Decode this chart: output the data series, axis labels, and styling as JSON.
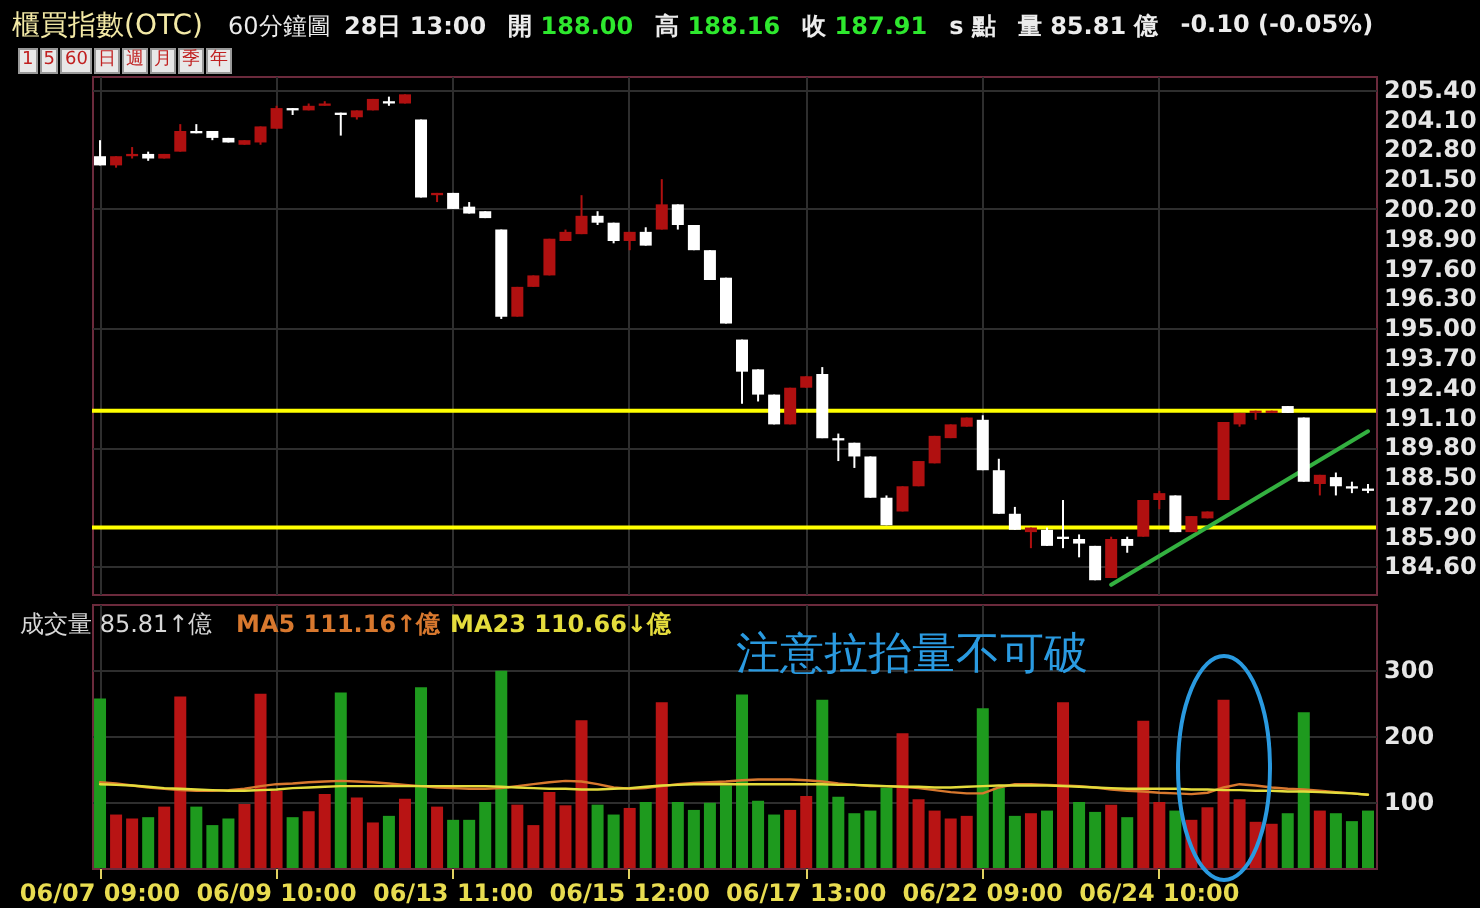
{
  "chart_data": [
    {
      "type": "candlestick",
      "title": "櫃買指數(OTC)",
      "subtitle": "60分鐘圖",
      "annotations": [
        "28日 13:00",
        "開 188.00",
        "高 188.16",
        "收 187.91",
        "s 點",
        "量 85.81 億",
        "-0.10 (-0.05%)",
        "1 5 60 日 週 月 季 年"
      ],
      "categories": [
        null,
        null,
        null,
        null,
        null,
        null,
        null,
        null,
        null,
        null,
        null,
        null,
        null,
        null,
        null,
        null,
        null,
        null,
        null,
        null,
        null,
        null,
        null,
        null,
        null,
        null,
        null,
        null,
        null,
        null,
        null,
        null,
        null,
        null,
        null,
        null,
        null,
        null,
        null,
        null,
        null,
        null,
        null,
        null,
        null,
        null,
        null,
        null,
        null,
        null,
        null,
        null,
        null,
        null,
        null,
        null,
        null,
        null,
        null,
        null,
        null,
        null,
        null,
        null,
        null,
        null,
        null,
        null,
        null,
        null,
        null,
        null,
        null,
        null,
        null,
        null,
        null,
        null,
        null,
        null
      ],
      "ohlc": [
        [
          202.5,
          203.2,
          202.1,
          202.1
        ],
        [
          202.1,
          202.5,
          202.0,
          202.5
        ],
        [
          202.5,
          202.9,
          202.4,
          202.6
        ],
        [
          202.6,
          202.7,
          202.3,
          202.4
        ],
        [
          202.4,
          202.6,
          202.4,
          202.6
        ],
        [
          202.7,
          203.9,
          202.7,
          203.6
        ],
        [
          203.6,
          203.9,
          203.5,
          203.5
        ],
        [
          203.6,
          203.6,
          203.2,
          203.3
        ],
        [
          203.3,
          203.3,
          203.1,
          203.1
        ],
        [
          203.0,
          203.2,
          203.0,
          203.2
        ],
        [
          203.1,
          203.8,
          203.0,
          203.8
        ],
        [
          203.7,
          204.7,
          203.7,
          204.6
        ],
        [
          204.6,
          204.6,
          204.3,
          204.5
        ],
        [
          204.5,
          204.8,
          204.5,
          204.7
        ],
        [
          204.7,
          204.9,
          204.7,
          204.8
        ],
        [
          204.4,
          204.4,
          203.4,
          204.3
        ],
        [
          204.2,
          204.5,
          204.1,
          204.5
        ],
        [
          204.5,
          205.0,
          204.5,
          205.0
        ],
        [
          204.9,
          205.1,
          204.7,
          204.8
        ],
        [
          204.8,
          205.2,
          204.8,
          205.2
        ],
        [
          204.1,
          204.1,
          200.7,
          200.7
        ],
        [
          200.8,
          200.9,
          200.5,
          200.9
        ],
        [
          200.9,
          200.9,
          200.2,
          200.2
        ],
        [
          200.3,
          200.5,
          200.0,
          200.0
        ],
        [
          200.1,
          200.1,
          199.8,
          199.8
        ],
        [
          199.3,
          199.3,
          195.4,
          195.5
        ],
        [
          195.5,
          196.8,
          195.5,
          196.8
        ],
        [
          196.8,
          197.3,
          196.8,
          197.3
        ],
        [
          197.3,
          198.9,
          197.3,
          198.9
        ],
        [
          198.8,
          199.3,
          198.8,
          199.2
        ],
        [
          199.1,
          200.8,
          199.1,
          199.9
        ],
        [
          199.9,
          200.1,
          199.5,
          199.6
        ],
        [
          199.6,
          199.6,
          198.7,
          198.8
        ],
        [
          198.8,
          199.2,
          198.4,
          199.2
        ],
        [
          199.2,
          199.4,
          198.6,
          198.6
        ],
        [
          199.3,
          201.5,
          199.3,
          200.4
        ],
        [
          200.4,
          200.4,
          199.3,
          199.5
        ],
        [
          199.5,
          199.5,
          198.4,
          198.4
        ],
        [
          198.4,
          198.4,
          197.1,
          197.1
        ],
        [
          197.2,
          197.2,
          195.2,
          195.2
        ],
        [
          194.5,
          194.5,
          191.7,
          193.1
        ],
        [
          193.2,
          193.2,
          191.8,
          192.1
        ],
        [
          192.1,
          192.1,
          190.8,
          190.8
        ],
        [
          190.8,
          192.4,
          190.8,
          192.4
        ],
        [
          192.4,
          192.9,
          192.4,
          192.9
        ],
        [
          193.0,
          193.3,
          190.2,
          190.2
        ],
        [
          190.2,
          190.4,
          189.2,
          190.1
        ],
        [
          190.0,
          190.0,
          188.9,
          189.4
        ],
        [
          189.4,
          189.4,
          187.6,
          187.6
        ],
        [
          187.6,
          187.7,
          186.4,
          186.4
        ],
        [
          187.0,
          188.1,
          187.0,
          188.1
        ],
        [
          188.1,
          189.2,
          188.1,
          189.2
        ],
        [
          189.1,
          190.3,
          189.1,
          190.3
        ],
        [
          190.2,
          190.8,
          190.2,
          190.8
        ],
        [
          190.7,
          191.1,
          190.7,
          191.1
        ],
        [
          191.0,
          191.2,
          188.8,
          188.8
        ],
        [
          188.8,
          189.3,
          186.9,
          186.9
        ],
        [
          186.9,
          187.2,
          186.2,
          186.2
        ],
        [
          186.1,
          186.3,
          185.4,
          186.3
        ],
        [
          186.2,
          186.3,
          185.5,
          185.5
        ],
        [
          185.9,
          187.5,
          185.4,
          185.8
        ],
        [
          185.8,
          186.0,
          185.0,
          185.6
        ],
        [
          185.5,
          185.5,
          184.0,
          184.0
        ],
        [
          184.1,
          185.9,
          184.1,
          185.8
        ],
        [
          185.8,
          185.9,
          185.2,
          185.5
        ],
        [
          185.9,
          187.5,
          185.9,
          187.5
        ],
        [
          187.5,
          187.9,
          187.1,
          187.8
        ],
        [
          187.7,
          187.7,
          186.1,
          186.1
        ],
        [
          186.1,
          186.8,
          186.1,
          186.8
        ],
        [
          186.7,
          187.0,
          186.7,
          187.0
        ],
        [
          187.5,
          190.9,
          187.5,
          190.9
        ],
        [
          190.8,
          191.3,
          190.7,
          191.3
        ],
        [
          191.3,
          191.4,
          191.0,
          191.4
        ],
        [
          191.3,
          191.4,
          191.3,
          191.4
        ],
        [
          191.6,
          191.6,
          191.3,
          191.3
        ],
        [
          191.1,
          191.1,
          188.3,
          188.3
        ],
        [
          188.2,
          188.6,
          187.7,
          188.6
        ],
        [
          188.5,
          188.7,
          187.7,
          188.1
        ],
        [
          188.1,
          188.3,
          187.8,
          188.0
        ],
        [
          188.0,
          188.2,
          187.8,
          187.9
        ]
      ],
      "colors": [
        "#ffffff",
        "#b01010",
        "#b01010",
        "#ffffff",
        "#b01010",
        "#b01010",
        "#ffffff",
        "#ffffff",
        "#ffffff",
        "#b01010",
        "#b01010",
        "#b01010",
        "#ffffff",
        "#b01010",
        "#b01010",
        "#ffffff",
        "#b01010",
        "#b01010",
        "#ffffff",
        "#b01010",
        "#ffffff",
        "#b01010",
        "#ffffff",
        "#ffffff",
        "#ffffff",
        "#ffffff",
        "#b01010",
        "#b01010",
        "#b01010",
        "#b01010",
        "#b01010",
        "#ffffff",
        "#ffffff",
        "#b01010",
        "#ffffff",
        "#b01010",
        "#ffffff",
        "#ffffff",
        "#ffffff",
        "#ffffff",
        "#ffffff",
        "#ffffff",
        "#ffffff",
        "#b01010",
        "#b01010",
        "#ffffff",
        "#ffffff",
        "#ffffff",
        "#ffffff",
        "#ffffff",
        "#b01010",
        "#b01010",
        "#b01010",
        "#b01010",
        "#b01010",
        "#ffffff",
        "#ffffff",
        "#ffffff",
        "#b01010",
        "#ffffff",
        "#ffffff",
        "#ffffff",
        "#ffffff",
        "#b01010",
        "#ffffff",
        "#b01010",
        "#b01010",
        "#ffffff",
        "#b01010",
        "#b01010",
        "#b01010",
        "#b01010",
        "#b01010",
        "#b01010",
        "#ffffff",
        "#ffffff",
        "#b01010",
        "#ffffff",
        "#ffffff",
        "#ffffff"
      ],
      "ylim": [
        183.4,
        206.0
      ],
      "yticks": [
        {
          "value": 205.4,
          "label": "205.40"
        },
        {
          "value": 204.1,
          "label": "204.10"
        },
        {
          "value": 202.8,
          "label": "202.80"
        },
        {
          "value": 201.5,
          "label": "201.50"
        },
        {
          "value": 200.2,
          "label": "200.20"
        },
        {
          "value": 198.9,
          "label": "198.90"
        },
        {
          "value": 197.6,
          "label": "197.60"
        },
        {
          "value": 196.3,
          "label": "196.30"
        },
        {
          "value": 195.0,
          "label": "195.00"
        },
        {
          "value": 193.7,
          "label": "193.70"
        },
        {
          "value": 192.4,
          "label": "192.40"
        },
        {
          "value": 191.1,
          "label": "191.10"
        },
        {
          "value": 189.8,
          "label": "189.80"
        },
        {
          "value": 188.5,
          "label": "188.50"
        },
        {
          "value": 187.2,
          "label": "187.20"
        },
        {
          "value": 185.9,
          "label": "185.90"
        },
        {
          "value": 184.6,
          "label": "184.60"
        }
      ],
      "grid": true,
      "tick_labels": "y",
      "ref_lines": [
        {
          "axis": "y",
          "value": 191.4,
          "color": "#ffff00"
        },
        {
          "axis": "y",
          "value": 186.3,
          "color": "#ffff00"
        }
      ],
      "series": [
        {
          "type": "line",
          "color": "#33b040",
          "values": [
            null,
            null,
            null,
            null,
            null,
            null,
            null,
            null,
            null,
            null,
            null,
            null,
            null,
            null,
            null,
            null,
            null,
            null,
            null,
            null,
            null,
            null,
            null,
            null,
            null,
            null,
            null,
            null,
            null,
            null,
            null,
            null,
            null,
            null,
            null,
            null,
            null,
            null,
            null,
            null,
            null,
            null,
            null,
            null,
            null,
            null,
            null,
            null,
            null,
            null,
            null,
            null,
            null,
            null,
            null,
            null,
            null,
            null,
            null,
            null,
            null,
            null,
            null,
            183.8,
            null,
            null,
            null,
            null,
            null,
            null,
            null,
            null,
            null,
            null,
            null,
            null,
            null,
            null,
            null,
            190.5
          ]
        }
      ]
    },
    {
      "type": "bar",
      "annotations": [
        "成交量 85.81↑億",
        "注意拉抬量不可破"
      ],
      "categories": [
        "06/07 09:00",
        null,
        null,
        null,
        null,
        null,
        null,
        null,
        null,
        null,
        null,
        "06/09 10:00",
        null,
        null,
        null,
        null,
        null,
        null,
        null,
        null,
        null,
        null,
        "06/13 11:00",
        null,
        null,
        null,
        null,
        null,
        null,
        null,
        null,
        null,
        null,
        "06/15 12:00",
        null,
        null,
        null,
        null,
        null,
        null,
        null,
        null,
        null,
        null,
        "06/17 13:00",
        null,
        null,
        null,
        null,
        null,
        null,
        null,
        null,
        null,
        null,
        "06/22 09:00",
        null,
        null,
        null,
        null,
        null,
        null,
        null,
        null,
        null,
        null,
        "06/24 10:00",
        null,
        null,
        null,
        null,
        null,
        null,
        null,
        null,
        null,
        null,
        null,
        null,
        null
      ],
      "series": [
        {
          "type": "bar",
          "values": [
            257,
            81,
            75,
            77,
            93,
            260,
            93,
            65,
            75,
            97,
            264,
            117,
            77,
            86,
            112,
            266,
            107,
            69,
            79,
            105,
            274,
            93,
            73,
            73,
            100,
            299,
            96,
            65,
            115,
            95,
            224,
            96,
            81,
            91,
            100,
            251,
            100,
            88,
            99,
            125,
            263,
            102,
            81,
            88,
            109,
            255,
            108,
            83,
            87,
            122,
            204,
            104,
            87,
            75,
            79,
            242,
            122,
            79,
            83,
            87,
            251,
            100,
            85,
            96,
            77,
            223,
            100,
            87,
            73,
            92,
            255,
            104,
            70,
            67,
            83,
            236,
            87,
            83,
            71,
            87
          ],
          "colors": [
            "#1e9a1e",
            "#b81414",
            "#b81414",
            "#1e9a1e",
            "#b81414",
            "#b81414",
            "#1e9a1e",
            "#1e9a1e",
            "#1e9a1e",
            "#b81414",
            "#b81414",
            "#b81414",
            "#1e9a1e",
            "#b81414",
            "#b81414",
            "#1e9a1e",
            "#b81414",
            "#b81414",
            "#1e9a1e",
            "#b81414",
            "#1e9a1e",
            "#b81414",
            "#1e9a1e",
            "#1e9a1e",
            "#1e9a1e",
            "#1e9a1e",
            "#b81414",
            "#b81414",
            "#b81414",
            "#b81414",
            "#b81414",
            "#1e9a1e",
            "#1e9a1e",
            "#b81414",
            "#1e9a1e",
            "#b81414",
            "#1e9a1e",
            "#1e9a1e",
            "#1e9a1e",
            "#1e9a1e",
            "#1e9a1e",
            "#1e9a1e",
            "#1e9a1e",
            "#b81414",
            "#b81414",
            "#1e9a1e",
            "#1e9a1e",
            "#1e9a1e",
            "#1e9a1e",
            "#1e9a1e",
            "#b81414",
            "#b81414",
            "#b81414",
            "#b81414",
            "#b81414",
            "#1e9a1e",
            "#1e9a1e",
            "#1e9a1e",
            "#b81414",
            "#1e9a1e",
            "#b81414",
            "#1e9a1e",
            "#1e9a1e",
            "#b81414",
            "#1e9a1e",
            "#b81414",
            "#b81414",
            "#1e9a1e",
            "#b81414",
            "#b81414",
            "#b81414",
            "#b81414",
            "#b81414",
            "#b81414",
            "#1e9a1e",
            "#1e9a1e",
            "#b81414",
            "#1e9a1e",
            "#1e9a1e",
            "#1e9a1e"
          ]
        },
        {
          "type": "line",
          "name": "MA5 111.16↑億",
          "color": "#d8782e",
          "values": [
            130,
            128,
            125,
            122,
            120,
            118,
            117,
            117,
            118,
            120,
            124,
            127,
            128,
            130,
            131,
            132,
            131,
            130,
            128,
            126,
            124,
            122,
            121,
            120,
            120,
            121,
            124,
            127,
            130,
            132,
            131,
            127,
            122,
            120,
            121,
            124,
            127,
            129,
            130,
            131,
            133,
            134,
            134,
            134,
            133,
            131,
            128,
            126,
            124,
            124,
            123,
            121,
            118,
            115,
            113,
            113,
            122,
            127,
            127,
            126,
            125,
            124,
            122,
            119,
            117,
            116,
            114,
            113,
            112,
            114,
            122,
            127,
            125,
            122,
            120,
            119,
            117,
            115,
            113,
            111
          ]
        },
        {
          "type": "line",
          "name": "MA23 110.66↓億",
          "color": "#e4dc3c",
          "values": [
            127,
            126,
            125,
            123,
            121,
            120,
            119,
            118,
            117,
            117,
            118,
            119,
            121,
            122,
            123,
            124,
            124,
            124,
            124,
            124,
            124,
            124,
            124,
            124,
            124,
            123,
            122,
            121,
            120,
            120,
            119,
            119,
            120,
            121,
            123,
            125,
            126,
            127,
            127,
            127,
            127,
            127,
            127,
            127,
            127,
            127,
            126,
            126,
            125,
            124,
            123,
            123,
            122,
            122,
            123,
            124,
            125,
            125,
            125,
            125,
            124,
            123,
            122,
            121,
            120,
            120,
            120,
            120,
            119,
            119,
            118,
            118,
            117,
            117,
            116,
            116,
            115,
            114,
            113,
            111
          ]
        }
      ],
      "ylim": [
        0,
        400
      ],
      "yticks": [
        100,
        200,
        300
      ],
      "grid": true,
      "legend": "top left"
    }
  ]
}
